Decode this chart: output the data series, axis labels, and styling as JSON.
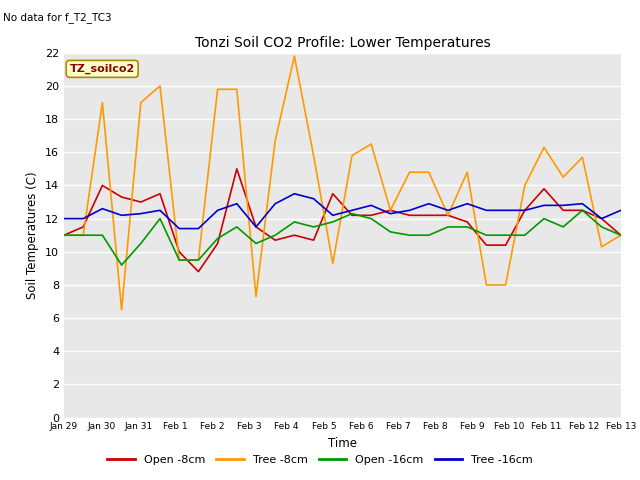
{
  "title": "Tonzi Soil CO2 Profile: Lower Temperatures",
  "subtitle": "No data for f_T2_TC3",
  "ylabel": "Soil Temperatures (C)",
  "xlabel": "Time",
  "annotation": "TZ_soilco2",
  "ylim": [
    0,
    22
  ],
  "yticks": [
    0,
    2,
    4,
    6,
    8,
    10,
    12,
    14,
    16,
    18,
    20,
    22
  ],
  "plot_bg_color": "#e8e8e8",
  "fig_bg_color": "#ffffff",
  "x_labels": [
    "Jan 29",
    "Jan 30",
    "Jan 31",
    "Feb 1",
    "Feb 2",
    "Feb 3",
    "Feb 4",
    "Feb 5",
    "Feb 6",
    "Feb 7",
    "Feb 8",
    "Feb 9",
    "Feb 10",
    "Feb 11",
    "Feb 12",
    "Feb 13"
  ],
  "open_8cm": [
    11.0,
    11.5,
    14.0,
    13.3,
    13.0,
    13.5,
    10.0,
    8.8,
    10.5,
    15.0,
    11.5,
    10.7,
    11.0,
    10.7,
    13.5,
    12.2,
    12.2,
    12.5,
    12.2,
    12.2,
    12.2,
    11.8,
    10.4,
    10.4,
    12.5,
    13.8,
    12.5,
    12.5,
    12.0,
    11.0
  ],
  "tree_8cm": [
    11.0,
    11.0,
    19.0,
    6.5,
    19.0,
    20.0,
    9.5,
    9.5,
    19.8,
    19.8,
    7.3,
    16.7,
    21.8,
    15.8,
    9.3,
    15.8,
    16.5,
    12.5,
    14.8,
    14.8,
    12.2,
    14.8,
    8.0,
    8.0,
    14.0,
    16.3,
    14.5,
    15.7,
    10.3,
    11.0
  ],
  "open_16cm": [
    11.0,
    11.0,
    11.0,
    9.2,
    10.5,
    12.0,
    9.5,
    9.5,
    10.8,
    11.5,
    10.5,
    11.0,
    11.8,
    11.5,
    11.8,
    12.3,
    12.0,
    11.2,
    11.0,
    11.0,
    11.5,
    11.5,
    11.0,
    11.0,
    11.0,
    12.0,
    11.5,
    12.5,
    11.5,
    11.0
  ],
  "tree_16cm": [
    12.0,
    12.0,
    12.6,
    12.2,
    12.3,
    12.5,
    11.4,
    11.4,
    12.5,
    12.9,
    11.5,
    12.9,
    13.5,
    13.2,
    12.2,
    12.5,
    12.8,
    12.3,
    12.5,
    12.9,
    12.5,
    12.9,
    12.5,
    12.5,
    12.5,
    12.8,
    12.8,
    12.9,
    12.0,
    12.5
  ],
  "color_open8": "#cc0000",
  "color_tree8": "#ff9900",
  "color_open16": "#009900",
  "color_tree16": "#0000cc",
  "lw": 1.2,
  "legend_labels": [
    "Open -8cm",
    "Tree -8cm",
    "Open -16cm",
    "Tree -16cm"
  ],
  "n_days": 15
}
